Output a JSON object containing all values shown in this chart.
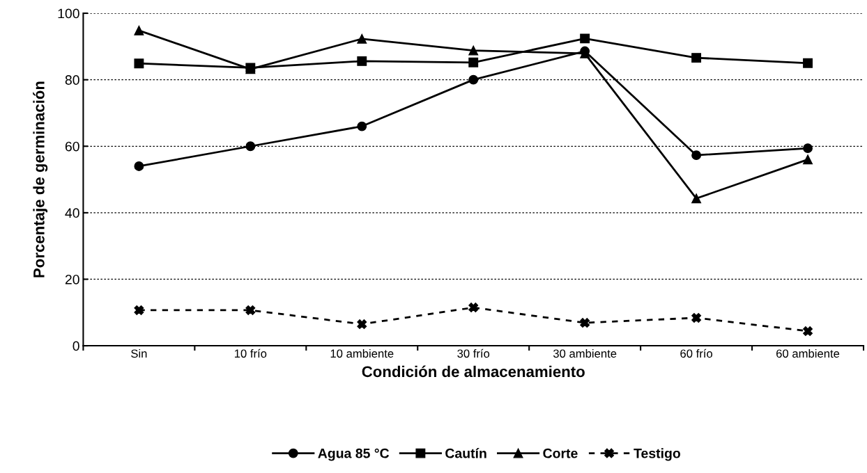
{
  "chart_data": {
    "type": "line",
    "xlabel": "Condición de almacenamiento",
    "ylabel": "Porcentaje de germinación",
    "categories": [
      "Sin",
      "10 frío",
      "10 ambiente",
      "30 frío",
      "30 ambiente",
      "60 frío",
      "60 ambiente"
    ],
    "series": [
      {
        "name": "Agua 85 °C",
        "color": "#000000",
        "marker": "circle",
        "line_style": "solid",
        "values": [
          54,
          60,
          66,
          80,
          88.6,
          57.3,
          59.4
        ]
      },
      {
        "name": "Cautín",
        "color": "#000000",
        "marker": "square",
        "line_style": "solid",
        "values": [
          84.9,
          83.6,
          85.6,
          85.2,
          92.4,
          86.6,
          85
        ]
      },
      {
        "name": "Corte",
        "color": "#000000",
        "marker": "triangle",
        "line_style": "solid",
        "values": [
          94.8,
          83.2,
          92.3,
          88.8,
          87.9,
          44.3,
          56
        ]
      },
      {
        "name": "Testigo",
        "color": "#000000",
        "marker": "cross",
        "line_style": "dashed",
        "values": [
          10.7,
          10.7,
          6.5,
          11.5,
          6.9,
          8.4,
          4.4
        ]
      }
    ],
    "ylim": [
      0,
      100
    ],
    "yticks": [
      0,
      20,
      40,
      60,
      80,
      100
    ],
    "grid": "y",
    "legend": "bottom"
  }
}
